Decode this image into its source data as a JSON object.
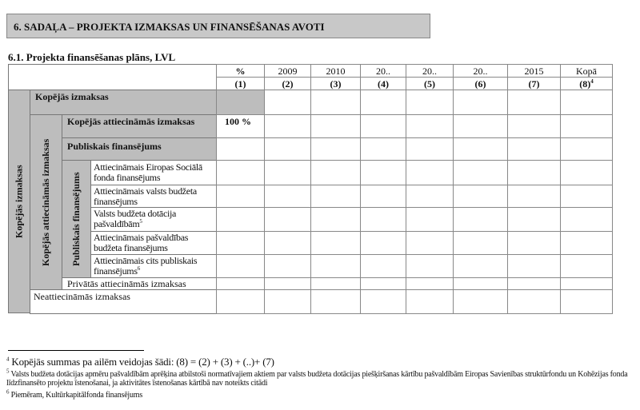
{
  "section_title": "6. SADAĻA – PROJEKTA IZMAKSAS UN FINANSĒŠANAS AVOTI",
  "subtitle": "6.1. Projekta finansēšanas plāns, LVL",
  "table": {
    "headers": [
      "%",
      "2009",
      "2010",
      "20..",
      "20..",
      "20..",
      "2015",
      "Kopā"
    ],
    "col_numbers": [
      "(1)",
      "(2)",
      "(3)",
      "(4)",
      "(5)",
      "(6)",
      "(7)",
      "(8)"
    ],
    "kopa_sup": "4",
    "rows": [
      {
        "label": "Kopējās izmaksas",
        "percent": ""
      },
      {
        "label": "Kopējās attiecināmās izmaksas",
        "percent": "100 %"
      },
      {
        "label": "Publiskais finansējums",
        "percent": ""
      },
      {
        "label": "Attiecināmais Eiropas Sociālā fonda finansējums",
        "percent": ""
      },
      {
        "label": "Attiecināmais valsts budžeta finansējums",
        "percent": ""
      },
      {
        "label": "Valsts budžeta dotācija pašvaldībām",
        "sup": "5",
        "percent": ""
      },
      {
        "label": "Attiecināmais pašvaldības budžeta finansējums",
        "percent": ""
      },
      {
        "label": "Attiecināmais cits publiskais finansējums",
        "sup": "6",
        "percent": ""
      },
      {
        "label": "Privātās attiecināmās izmaksas",
        "percent": ""
      },
      {
        "label": "Neattiecināmās izmaksas",
        "percent": ""
      }
    ],
    "vertical_labels": [
      "Kopējās izmaksas",
      "Kopējās attiecināmās izmaksas",
      "Publiskais finansējums"
    ]
  },
  "footnotes": [
    {
      "num": "4",
      "text": "Kopējās summas pa ailēm veidojas šādi: (8) = (2) + (3) + (..)+ (7)"
    },
    {
      "num": "5",
      "text": "Valsts budžeta dotācijas apmēru pašvaldībām aprēķina atbilstoši normatīvajiem aktiem par valsts budžeta dotācijas piešķiršanas kārtību pašvaldībām Eiropas Savienības struktūrfondu un Kohēzijas fonda līdzfinansēto projektu īstenošanai, ja aktivitātes īstenošanas kārtībā nav noteikts citādi"
    },
    {
      "num": "6",
      "text": "Piemēram, Kultūrkapitālfonda finansējums"
    }
  ]
}
